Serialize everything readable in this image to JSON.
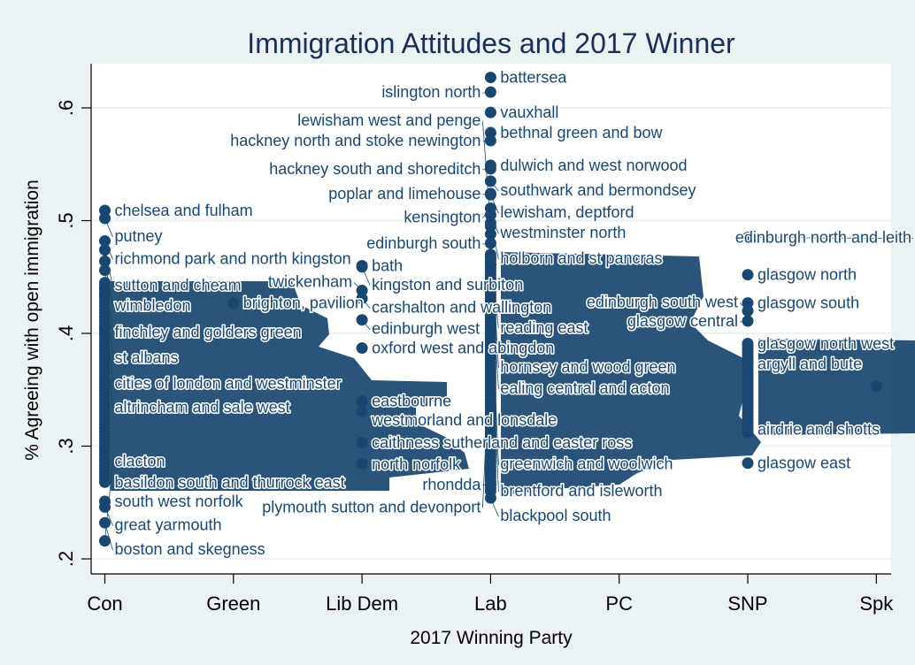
{
  "chart_data": {
    "type": "scatter",
    "title": "Immigration Attitudes and 2017 Winner",
    "xlabel": "2017 Winning Party",
    "ylabel": "% Agreeing with open immigration",
    "categories": [
      "Con",
      "Green",
      "Lib Dem",
      "Lab",
      "PC",
      "SNP",
      "Spk"
    ],
    "yticks": [
      0.2,
      0.3,
      0.4,
      0.5,
      0.6
    ],
    "ytick_labels": [
      ".2",
      ".3",
      ".4",
      ".5",
      ".6"
    ],
    "ylim": [
      0.19,
      0.64
    ],
    "grid": true,
    "marker_color": "#1a476f",
    "labeled_points": [
      {
        "party": "Con",
        "y": 0.509,
        "label": "chelsea and fulham"
      },
      {
        "party": "Con",
        "y": 0.502,
        "label": "putney"
      },
      {
        "party": "Con",
        "y": 0.482,
        "label": "richmond park and north kingston"
      },
      {
        "party": "Con",
        "y": 0.474,
        "label": "sutton and cheam"
      },
      {
        "party": "Con",
        "y": 0.464,
        "label": "wimbledon"
      },
      {
        "party": "Con",
        "y": 0.456,
        "label": "finchley and golders green"
      },
      {
        "party": "Con",
        "y": 0.441,
        "label": "st albans"
      },
      {
        "party": "Con",
        "y": 0.434,
        "label": "cities of london and westminster"
      },
      {
        "party": "Con",
        "y": 0.405,
        "label": "altrincham and sale west"
      },
      {
        "party": "Con",
        "y": 0.268,
        "label": "basildon south and thurrock east"
      },
      {
        "party": "Con",
        "y": 0.251,
        "label": "south west norfolk"
      },
      {
        "party": "Con",
        "y": 0.246,
        "label": "great yarmouth"
      },
      {
        "party": "Con",
        "y": 0.232,
        "label": "boston and skegness"
      },
      {
        "party": "Con",
        "y": 0.216,
        "label": "clacton"
      },
      {
        "party": "Green",
        "y": 0.427,
        "label": "brighton, pavilion"
      },
      {
        "party": "Lib Dem",
        "y": 0.46,
        "label": "bath"
      },
      {
        "party": "Lib Dem",
        "y": 0.459,
        "label": "kingston and surbiton"
      },
      {
        "party": "Lib Dem",
        "y": 0.438,
        "label": "twickenham"
      },
      {
        "party": "Lib Dem",
        "y": 0.431,
        "label": "carshalton and wallington"
      },
      {
        "party": "Lib Dem",
        "y": 0.412,
        "label": "edinburgh west"
      },
      {
        "party": "Lib Dem",
        "y": 0.387,
        "label": "oxford west and abingdon"
      },
      {
        "party": "Lib Dem",
        "y": 0.34,
        "label": "eastbourne"
      },
      {
        "party": "Lib Dem",
        "y": 0.331,
        "label": "westmorland and lonsdale"
      },
      {
        "party": "Lib Dem",
        "y": 0.303,
        "label": "caithness sutherland and easter ross"
      },
      {
        "party": "Lib Dem",
        "y": 0.284,
        "label": "north norfolk"
      },
      {
        "party": "Lab",
        "y": 0.627,
        "label": "battersea"
      },
      {
        "party": "Lab",
        "y": 0.614,
        "label": "islington north"
      },
      {
        "party": "Lab",
        "y": 0.596,
        "label": "vauxhall"
      },
      {
        "party": "Lab",
        "y": 0.578,
        "label": "bethnal green and bow"
      },
      {
        "party": "Lab",
        "y": 0.571,
        "label": "hackney north and stoke newington"
      },
      {
        "party": "Lab",
        "y": 0.549,
        "label": "dulwich and west norwood"
      },
      {
        "party": "Lab",
        "y": 0.546,
        "label": "hackney south and shoreditch"
      },
      {
        "party": "Lab",
        "y": 0.535,
        "label": "southwark and bermondsey"
      },
      {
        "party": "Lab",
        "y": 0.524,
        "label": "poplar and limehouse"
      },
      {
        "party": "Lab",
        "y": 0.523,
        "label": "lewisham, deptford"
      },
      {
        "party": "Lab",
        "y": 0.511,
        "label": "kensington"
      },
      {
        "party": "Lab",
        "y": 0.505,
        "label": "westminster north"
      },
      {
        "party": "Lab",
        "y": 0.498,
        "label": "holborn and st pancras"
      },
      {
        "party": "Lab",
        "y": 0.495,
        "label": "lewisham west and penge"
      },
      {
        "party": "Lab",
        "y": 0.488,
        "label": "hornsey and wood green"
      },
      {
        "party": "Lab",
        "y": 0.48,
        "label": "edinburgh south"
      },
      {
        "party": "Lab",
        "y": 0.468,
        "label": "reading east"
      },
      {
        "party": "Lab",
        "y": 0.461,
        "label": "ealing central and acton"
      },
      {
        "party": "Lab",
        "y": 0.441,
        "label": "greenwich and woolwich"
      },
      {
        "party": "Lab",
        "y": 0.425,
        "label": "brentford and isleworth"
      },
      {
        "party": "Lab",
        "y": 0.395,
        "label": "plymouth sutton and devonport"
      },
      {
        "party": "Lab",
        "y": 0.266,
        "label": "rhondda"
      },
      {
        "party": "Lab",
        "y": 0.254,
        "label": "blackpool south"
      },
      {
        "party": "SNP",
        "y": 0.485,
        "label": "edinburgh north and leith"
      },
      {
        "party": "SNP",
        "y": 0.452,
        "label": "glasgow north"
      },
      {
        "party": "SNP",
        "y": 0.427,
        "label": "glasgow south"
      },
      {
        "party": "SNP",
        "y": 0.42,
        "label": "edinburgh south west"
      },
      {
        "party": "SNP",
        "y": 0.411,
        "label": "glasgow central"
      },
      {
        "party": "SNP",
        "y": 0.391,
        "label": "glasgow north west"
      },
      {
        "party": "SNP",
        "y": 0.373,
        "label": "argyll and bute"
      },
      {
        "party": "SNP",
        "y": 0.315,
        "label": "airdrie and shotts"
      },
      {
        "party": "SNP",
        "y": 0.285,
        "label": "glasgow east"
      }
    ],
    "unlabeled_ranges": [
      {
        "party": "Con",
        "from": 0.27,
        "to": 0.445
      },
      {
        "party": "Lab",
        "from": 0.258,
        "to": 0.47
      },
      {
        "party": "SNP",
        "from": 0.31,
        "to": 0.39
      },
      {
        "party": "Spk",
        "from": 0.353,
        "to": 0.353
      }
    ]
  }
}
